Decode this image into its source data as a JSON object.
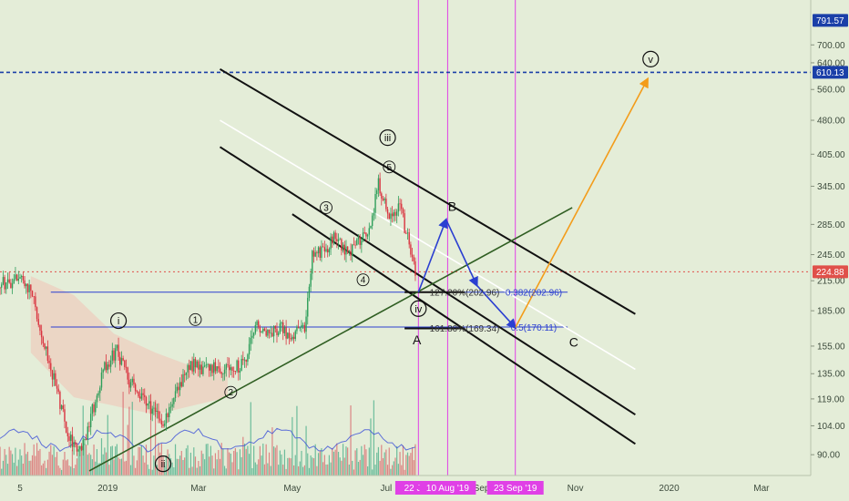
{
  "chart_data": {
    "type": "candlestick",
    "colors": {
      "background": "#e4edd8",
      "axis_panel": "#e4edd8",
      "up_candle": "#2e9e5a",
      "down_candle": "#d9333f",
      "channel_lines": "#111111",
      "center_line": "#ffffff",
      "support_line": "#2f5e22",
      "fib_lines": "#2b3fd1",
      "abc_path": "#2b3fd1",
      "target_arrow": "#f39c1a",
      "time_markers": "#e040e6",
      "price_line": "#e0504a",
      "target_line": "#1a3fa8",
      "cloud": "#f1c3b7",
      "ma_line": "#3b4fd8"
    },
    "y_axis": {
      "scale": "log",
      "range": [
        80,
        800
      ],
      "ticks": [
        {
          "label": "700.00",
          "value": 700
        },
        {
          "label": "640.00",
          "value": 640
        },
        {
          "label": "560.00",
          "value": 560
        },
        {
          "label": "480.00",
          "value": 480
        },
        {
          "label": "405.00",
          "value": 405
        },
        {
          "label": "345.00",
          "value": 345
        },
        {
          "label": "285.00",
          "value": 285
        },
        {
          "label": "245.00",
          "value": 245
        },
        {
          "label": "215.00",
          "value": 215
        },
        {
          "label": "185.00",
          "value": 185
        },
        {
          "label": "155.00",
          "value": 155
        },
        {
          "label": "135.00",
          "value": 135
        },
        {
          "label": "119.00",
          "value": 119
        },
        {
          "label": "104.00",
          "value": 104
        },
        {
          "label": "90.00",
          "value": 90
        }
      ],
      "price_badges": [
        {
          "label": "791.57",
          "value": 791.57,
          "color": "#1a3fa8"
        },
        {
          "label": "610.13",
          "value": 610.13,
          "color": "#1a3fa8"
        },
        {
          "label": "224.88",
          "value": 224.88,
          "color": "#e0504a"
        }
      ]
    },
    "x_axis": {
      "ticks": [
        {
          "label": "5",
          "date": "2018-11-05"
        },
        {
          "label": "2019",
          "date": "2019-01-01"
        },
        {
          "label": "Mar",
          "date": "2019-03-01"
        },
        {
          "label": "May",
          "date": "2019-05-01"
        },
        {
          "label": "Jul",
          "date": "2019-07-01"
        },
        {
          "label": "Sep",
          "date": "2019-09-01"
        },
        {
          "label": "Nov",
          "date": "2019-11-01"
        },
        {
          "label": "2020",
          "date": "2020-01-01"
        },
        {
          "label": "Mar",
          "date": "2020-03-01"
        }
      ],
      "markers": [
        {
          "label": "22 Jul '",
          "date": "2019-07-22"
        },
        {
          "label": "10 Aug '19",
          "date": "2019-08-10"
        },
        {
          "label": "23 Sep '19",
          "date": "2019-09-23"
        }
      ]
    },
    "price_path": [
      {
        "date": "2018-10-20",
        "close": 210
      },
      {
        "date": "2018-11-05",
        "close": 217
      },
      {
        "date": "2018-11-12",
        "close": 205
      },
      {
        "date": "2018-11-20",
        "close": 160
      },
      {
        "date": "2018-11-28",
        "close": 128
      },
      {
        "date": "2018-12-07",
        "close": 98
      },
      {
        "date": "2018-12-15",
        "close": 91
      },
      {
        "date": "2018-12-22",
        "close": 112
      },
      {
        "date": "2018-12-30",
        "close": 140
      },
      {
        "date": "2019-01-07",
        "close": 152
      },
      {
        "date": "2019-01-15",
        "close": 130
      },
      {
        "date": "2019-01-25",
        "close": 118
      },
      {
        "date": "2019-02-06",
        "close": 106
      },
      {
        "date": "2019-02-15",
        "close": 124
      },
      {
        "date": "2019-02-24",
        "close": 142
      },
      {
        "date": "2019-03-04",
        "close": 136
      },
      {
        "date": "2019-03-12",
        "close": 141
      },
      {
        "date": "2019-03-20",
        "close": 138
      },
      {
        "date": "2019-03-31",
        "close": 142
      },
      {
        "date": "2019-04-08",
        "close": 174
      },
      {
        "date": "2019-04-15",
        "close": 167
      },
      {
        "date": "2019-04-23",
        "close": 170
      },
      {
        "date": "2019-05-01",
        "close": 162
      },
      {
        "date": "2019-05-09",
        "close": 172
      },
      {
        "date": "2019-05-14",
        "close": 245
      },
      {
        "date": "2019-05-22",
        "close": 252
      },
      {
        "date": "2019-05-30",
        "close": 270
      },
      {
        "date": "2019-06-06",
        "close": 244
      },
      {
        "date": "2019-06-13",
        "close": 262
      },
      {
        "date": "2019-06-20",
        "close": 278
      },
      {
        "date": "2019-06-26",
        "close": 350
      },
      {
        "date": "2019-07-03",
        "close": 300
      },
      {
        "date": "2019-07-10",
        "close": 310
      },
      {
        "date": "2019-07-16",
        "close": 258
      },
      {
        "date": "2019-07-20",
        "close": 225
      }
    ],
    "wave_labels": [
      {
        "text": "i",
        "circled": true,
        "date": "2019-01-08",
        "price": 176
      },
      {
        "text": "ii",
        "circled": true,
        "date": "2019-02-06",
        "price": 86
      },
      {
        "text": "1",
        "circled": true,
        "date": "2019-02-27",
        "price": 177
      },
      {
        "text": "2",
        "circled": true,
        "date": "2019-03-22",
        "price": 123
      },
      {
        "text": "3",
        "circled": true,
        "date": "2019-05-23",
        "price": 310
      },
      {
        "text": "4",
        "circled": true,
        "date": "2019-06-16",
        "price": 216
      },
      {
        "text": "5",
        "circled": true,
        "date": "2019-07-03",
        "price": 380
      },
      {
        "text": "iii",
        "circled": true,
        "date": "2019-07-02",
        "price": 440
      },
      {
        "text": "iv",
        "circled": true,
        "date": "2019-07-22",
        "price": 187
      },
      {
        "text": "v",
        "circled": true,
        "date": "2019-12-20",
        "price": 652
      },
      {
        "text": "A",
        "circled": false,
        "date": "2019-07-21",
        "price": 160
      },
      {
        "text": "B",
        "circled": false,
        "date": "2019-08-13",
        "price": 312
      },
      {
        "text": "C",
        "circled": false,
        "date": "2019-10-31",
        "price": 158
      }
    ],
    "fib_levels": [
      {
        "label": "127.20%(202.96)",
        "value": 202.96,
        "date": "2019-08-21"
      },
      {
        "label": "0.382(202.96)",
        "value": 202.96,
        "date": "2019-10-05"
      },
      {
        "label": "161.80%(169.34)",
        "value": 169.34,
        "date": "2019-08-21"
      },
      {
        "label": "0.5(170.11)",
        "value": 170.11,
        "date": "2019-10-05"
      }
    ],
    "projection": {
      "abc": [
        {
          "date": "2019-07-22",
          "price": 203
        },
        {
          "date": "2019-08-09",
          "price": 292
        },
        {
          "date": "2019-08-29",
          "price": 210
        },
        {
          "date": "2019-09-23",
          "price": 170
        }
      ],
      "target": [
        {
          "date": "2019-09-23",
          "price": 170
        },
        {
          "date": "2019-12-18",
          "price": 590
        }
      ]
    },
    "channel": {
      "upper": [
        {
          "date": "2019-03-15",
          "price": 620
        },
        {
          "date": "2019-12-10",
          "price": 182
        }
      ],
      "center": [
        {
          "date": "2019-03-15",
          "price": 480
        },
        {
          "date": "2019-12-10",
          "price": 138
        }
      ],
      "middle": [
        {
          "date": "2019-03-15",
          "price": 420
        },
        {
          "date": "2019-12-10",
          "price": 110
        }
      ],
      "lower": [
        {
          "date": "2019-05-01",
          "price": 300
        },
        {
          "date": "2019-12-10",
          "price": 95
        }
      ]
    },
    "support_line": [
      {
        "date": "2018-12-20",
        "price": 83
      },
      {
        "date": "2019-10-30",
        "price": 310
      }
    ],
    "target_line": 610.13,
    "current_price": 224.88
  }
}
